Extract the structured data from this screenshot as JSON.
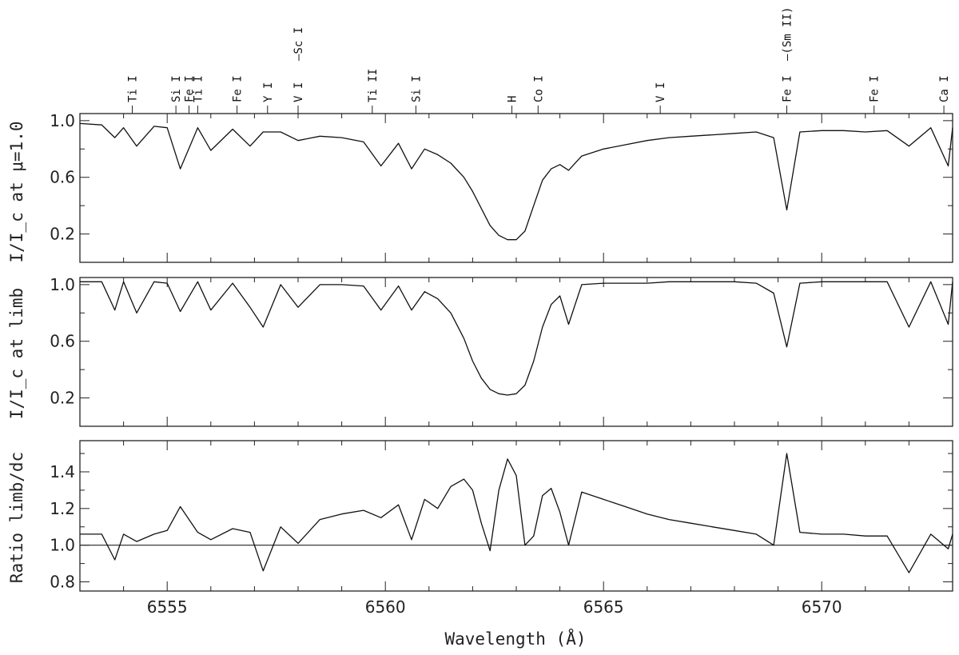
{
  "chart_data": [
    {
      "type": "line",
      "ylabel": "I/I_c at μ=1.0",
      "ylim": [
        0.0,
        1.05
      ],
      "yticks": [
        0.2,
        0.6,
        1.0
      ],
      "xlim": [
        6553.0,
        6573.0
      ],
      "grid": false,
      "series": [
        {
          "x": [
            6553.0,
            6553.5,
            6553.8,
            6554.0,
            6554.3,
            6554.7,
            6555.0,
            6555.3,
            6555.7,
            6556.0,
            6556.5,
            6556.9,
            6557.2,
            6557.6,
            6558.0,
            6558.5,
            6559.0,
            6559.5,
            6559.9,
            6560.3,
            6560.6,
            6560.9,
            6561.2,
            6561.5,
            6561.8,
            6562.0,
            6562.2,
            6562.4,
            6562.6,
            6562.8,
            6563.0,
            6563.2,
            6563.4,
            6563.6,
            6563.8,
            6564.0,
            6564.2,
            6564.5,
            6565.0,
            6565.5,
            6566.0,
            6566.5,
            6567.0,
            6567.5,
            6568.0,
            6568.5,
            6568.9,
            6569.2,
            6569.5,
            6570.0,
            6570.5,
            6571.0,
            6571.5,
            6572.0,
            6572.5,
            6572.9,
            6573.0
          ],
          "y": [
            0.98,
            0.97,
            0.88,
            0.95,
            0.82,
            0.96,
            0.95,
            0.66,
            0.95,
            0.79,
            0.94,
            0.82,
            0.92,
            0.92,
            0.86,
            0.89,
            0.88,
            0.85,
            0.68,
            0.84,
            0.66,
            0.8,
            0.76,
            0.7,
            0.6,
            0.5,
            0.38,
            0.26,
            0.19,
            0.16,
            0.16,
            0.22,
            0.4,
            0.58,
            0.66,
            0.69,
            0.65,
            0.75,
            0.8,
            0.83,
            0.86,
            0.88,
            0.89,
            0.9,
            0.91,
            0.92,
            0.88,
            0.37,
            0.92,
            0.93,
            0.93,
            0.92,
            0.93,
            0.82,
            0.95,
            0.68,
            0.95
          ]
        }
      ]
    },
    {
      "type": "line",
      "ylabel": "I/I_c at limb",
      "ylim": [
        0.0,
        1.05
      ],
      "yticks": [
        0.2,
        0.6,
        1.0
      ],
      "xlim": [
        6553.0,
        6573.0
      ],
      "grid": false,
      "series": [
        {
          "x": [
            6553.0,
            6553.5,
            6553.8,
            6554.0,
            6554.3,
            6554.7,
            6555.0,
            6555.3,
            6555.7,
            6556.0,
            6556.5,
            6556.9,
            6557.2,
            6557.6,
            6558.0,
            6558.5,
            6559.0,
            6559.5,
            6559.9,
            6560.3,
            6560.6,
            6560.9,
            6561.2,
            6561.5,
            6561.8,
            6562.0,
            6562.2,
            6562.4,
            6562.6,
            6562.8,
            6563.0,
            6563.2,
            6563.4,
            6563.6,
            6563.8,
            6564.0,
            6564.2,
            6564.5,
            6565.0,
            6565.5,
            6566.0,
            6566.5,
            6567.0,
            6567.5,
            6568.0,
            6568.5,
            6568.9,
            6569.2,
            6569.5,
            6570.0,
            6570.5,
            6571.0,
            6571.5,
            6572.0,
            6572.5,
            6572.9,
            6573.0
          ],
          "y": [
            1.02,
            1.02,
            0.82,
            1.02,
            0.8,
            1.02,
            1.01,
            0.81,
            1.02,
            0.82,
            1.01,
            0.84,
            0.7,
            1.0,
            0.84,
            1.0,
            1.0,
            0.99,
            0.82,
            0.99,
            0.82,
            0.95,
            0.9,
            0.8,
            0.62,
            0.46,
            0.34,
            0.26,
            0.23,
            0.22,
            0.23,
            0.29,
            0.46,
            0.7,
            0.86,
            0.92,
            0.72,
            1.0,
            1.01,
            1.01,
            1.01,
            1.02,
            1.02,
            1.02,
            1.02,
            1.01,
            0.94,
            0.56,
            1.01,
            1.02,
            1.02,
            1.02,
            1.02,
            0.7,
            1.02,
            0.72,
            1.02
          ]
        }
      ]
    },
    {
      "type": "line",
      "ylabel": "Ratio limb/dc",
      "xlabel": "Wavelength (Å)",
      "ylim": [
        0.75,
        1.57
      ],
      "yticks": [
        0.8,
        1.0,
        1.2,
        1.4
      ],
      "xlim": [
        6553.0,
        6573.0
      ],
      "xticks": [
        6555,
        6560,
        6565,
        6570
      ],
      "grid": false,
      "reference_line": 1.0,
      "series": [
        {
          "x": [
            6553.0,
            6553.5,
            6553.8,
            6554.0,
            6554.3,
            6554.7,
            6555.0,
            6555.3,
            6555.7,
            6556.0,
            6556.5,
            6556.9,
            6557.2,
            6557.6,
            6558.0,
            6558.5,
            6559.0,
            6559.5,
            6559.9,
            6560.3,
            6560.6,
            6560.9,
            6561.2,
            6561.5,
            6561.8,
            6562.0,
            6562.2,
            6562.4,
            6562.6,
            6562.8,
            6563.0,
            6563.2,
            6563.4,
            6563.6,
            6563.8,
            6564.0,
            6564.2,
            6564.5,
            6565.0,
            6565.5,
            6566.0,
            6566.5,
            6567.0,
            6567.5,
            6568.0,
            6568.5,
            6568.9,
            6569.2,
            6569.5,
            6570.0,
            6570.5,
            6571.0,
            6571.5,
            6572.0,
            6572.5,
            6572.9,
            6573.0
          ],
          "y": [
            1.06,
            1.06,
            0.92,
            1.06,
            1.02,
            1.06,
            1.08,
            1.21,
            1.07,
            1.03,
            1.09,
            1.07,
            0.86,
            1.1,
            1.01,
            1.14,
            1.17,
            1.19,
            1.15,
            1.22,
            1.03,
            1.25,
            1.2,
            1.32,
            1.36,
            1.3,
            1.12,
            0.97,
            1.3,
            1.47,
            1.38,
            1.0,
            1.05,
            1.27,
            1.31,
            1.18,
            1.0,
            1.29,
            1.25,
            1.21,
            1.17,
            1.14,
            1.12,
            1.1,
            1.08,
            1.06,
            1.0,
            1.5,
            1.07,
            1.06,
            1.06,
            1.05,
            1.05,
            0.85,
            1.06,
            0.98,
            1.06
          ]
        }
      ]
    }
  ],
  "line_ids": [
    {
      "x": 6554.2,
      "label": "Ti I"
    },
    {
      "x": 6555.2,
      "label": "Si I"
    },
    {
      "x": 6555.5,
      "label": "Fe I"
    },
    {
      "x": 6555.7,
      "label": "Ti I"
    },
    {
      "x": 6556.6,
      "label": "Fe I"
    },
    {
      "x": 6557.3,
      "label": "Y I"
    },
    {
      "x": 6558.0,
      "label": "V I"
    },
    {
      "x": 6558.0,
      "label": "Sc I"
    },
    {
      "x": 6559.7,
      "label": "Ti II"
    },
    {
      "x": 6560.7,
      "label": "Si I"
    },
    {
      "x": 6562.9,
      "label": "H"
    },
    {
      "x": 6563.5,
      "label": "Co I"
    },
    {
      "x": 6566.3,
      "label": "V I"
    },
    {
      "x": 6569.2,
      "label": "Fe I"
    },
    {
      "x": 6569.2,
      "label": "(Sm II)"
    },
    {
      "x": 6571.2,
      "label": "Fe I"
    },
    {
      "x": 6572.8,
      "label": "Ca I"
    }
  ]
}
